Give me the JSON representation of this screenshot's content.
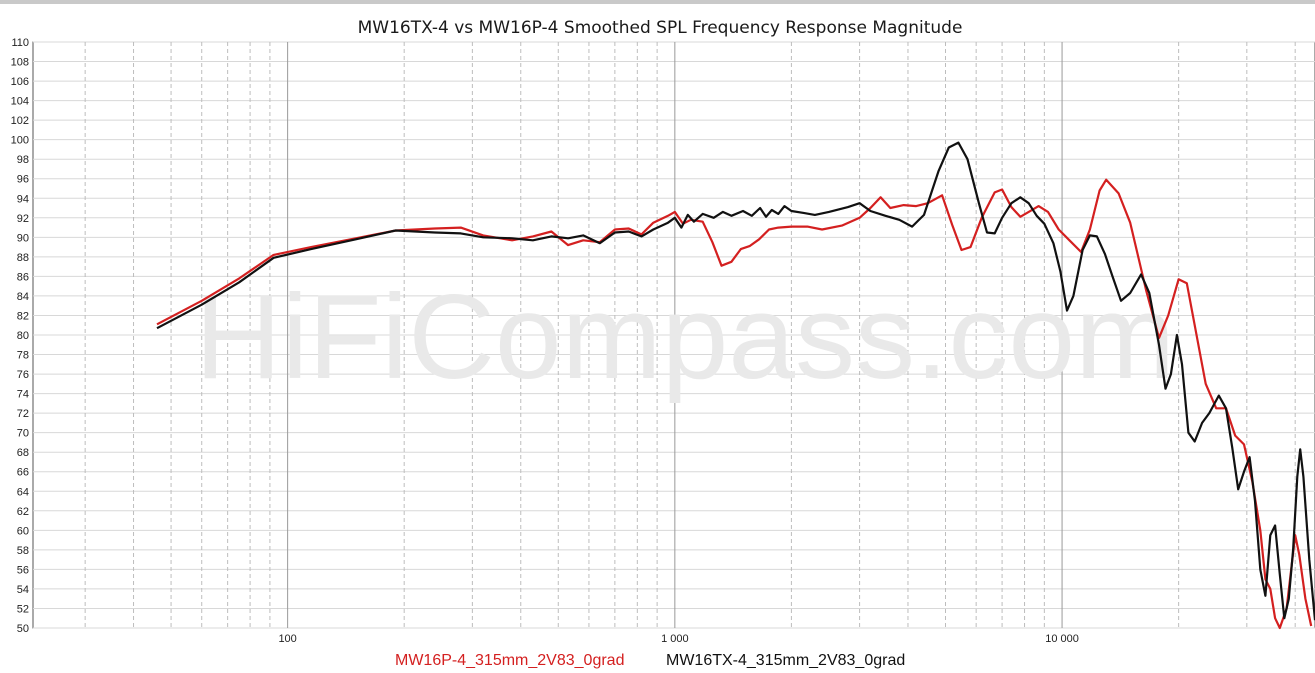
{
  "chart_data": {
    "type": "line",
    "title": "MW16TX-4 vs MW16P-4 Smoothed SPL Frequency Response Magnitude",
    "watermark": "HiFiCompass.com",
    "x_scale": "log",
    "xlim": [
      22,
      45000
    ],
    "ylim": [
      50,
      110
    ],
    "y_ticks": [
      50,
      52,
      54,
      56,
      58,
      60,
      62,
      64,
      66,
      68,
      70,
      72,
      74,
      76,
      78,
      80,
      82,
      84,
      86,
      88,
      90,
      92,
      94,
      96,
      98,
      100,
      102,
      104,
      106,
      108,
      110
    ],
    "x_tick_labels": [
      {
        "value": 100,
        "label": "100"
      },
      {
        "value": 1000,
        "label": "1 000"
      },
      {
        "value": 10000,
        "label": "10 000"
      }
    ],
    "grid": true,
    "legend_position": "bottom-center",
    "series": [
      {
        "name": "MW16P-4_315mm_2V83_0grad",
        "color": "#d42020",
        "points": [
          [
            46,
            81.1
          ],
          [
            60,
            83.5
          ],
          [
            75,
            85.8
          ],
          [
            92,
            88.2
          ],
          [
            115,
            89.0
          ],
          [
            150,
            89.9
          ],
          [
            190,
            90.7
          ],
          [
            240,
            90.9
          ],
          [
            280,
            91.0
          ],
          [
            320,
            90.2
          ],
          [
            380,
            89.7
          ],
          [
            430,
            90.1
          ],
          [
            480,
            90.6
          ],
          [
            530,
            89.2
          ],
          [
            580,
            89.7
          ],
          [
            640,
            89.5
          ],
          [
            700,
            90.8
          ],
          [
            760,
            90.9
          ],
          [
            820,
            90.3
          ],
          [
            880,
            91.5
          ],
          [
            960,
            92.2
          ],
          [
            1000,
            92.6
          ],
          [
            1050,
            91.4
          ],
          [
            1100,
            91.8
          ],
          [
            1180,
            91.6
          ],
          [
            1250,
            89.5
          ],
          [
            1320,
            87.1
          ],
          [
            1400,
            87.5
          ],
          [
            1480,
            88.8
          ],
          [
            1560,
            89.1
          ],
          [
            1650,
            89.8
          ],
          [
            1750,
            90.8
          ],
          [
            1850,
            91.0
          ],
          [
            2000,
            91.1
          ],
          [
            2200,
            91.1
          ],
          [
            2400,
            90.8
          ],
          [
            2700,
            91.2
          ],
          [
            3000,
            92.0
          ],
          [
            3200,
            93.0
          ],
          [
            3400,
            94.1
          ],
          [
            3600,
            93.0
          ],
          [
            3900,
            93.3
          ],
          [
            4200,
            93.2
          ],
          [
            4500,
            93.5
          ],
          [
            4900,
            94.3
          ],
          [
            5200,
            91.3
          ],
          [
            5500,
            88.7
          ],
          [
            5800,
            89.0
          ],
          [
            6200,
            92.0
          ],
          [
            6700,
            94.6
          ],
          [
            7000,
            94.9
          ],
          [
            7400,
            93.1
          ],
          [
            7800,
            92.1
          ],
          [
            8200,
            92.6
          ],
          [
            8700,
            93.2
          ],
          [
            9200,
            92.6
          ],
          [
            9800,
            90.8
          ],
          [
            10500,
            89.6
          ],
          [
            11200,
            88.5
          ],
          [
            11800,
            90.8
          ],
          [
            12500,
            94.8
          ],
          [
            13000,
            95.9
          ],
          [
            14000,
            94.5
          ],
          [
            15000,
            91.5
          ],
          [
            16500,
            84.5
          ],
          [
            17800,
            79.7
          ],
          [
            18800,
            82.0
          ],
          [
            20000,
            85.7
          ],
          [
            21000,
            85.3
          ],
          [
            22000,
            81.0
          ],
          [
            23500,
            75.0
          ],
          [
            25000,
            72.5
          ],
          [
            26500,
            72.5
          ],
          [
            28000,
            69.7
          ],
          [
            29500,
            68.8
          ],
          [
            31000,
            65.0
          ],
          [
            32500,
            60.0
          ],
          [
            33500,
            55.0
          ],
          [
            34500,
            54.0
          ],
          [
            35500,
            51.0
          ],
          [
            36500,
            50.0
          ],
          [
            38000,
            52.0
          ],
          [
            40000,
            59.5
          ],
          [
            41000,
            57.5
          ],
          [
            42500,
            53.0
          ],
          [
            44000,
            50.2
          ]
        ]
      },
      {
        "name": "MW16TX-4_315mm_2V83_0grad",
        "color": "#111111",
        "points": [
          [
            46,
            80.7
          ],
          [
            60,
            83.1
          ],
          [
            75,
            85.4
          ],
          [
            92,
            87.9
          ],
          [
            115,
            88.8
          ],
          [
            150,
            89.8
          ],
          [
            190,
            90.7
          ],
          [
            240,
            90.5
          ],
          [
            280,
            90.4
          ],
          [
            320,
            90.0
          ],
          [
            380,
            89.9
          ],
          [
            430,
            89.7
          ],
          [
            480,
            90.1
          ],
          [
            530,
            89.9
          ],
          [
            580,
            90.2
          ],
          [
            640,
            89.4
          ],
          [
            700,
            90.5
          ],
          [
            760,
            90.6
          ],
          [
            820,
            90.1
          ],
          [
            880,
            90.8
          ],
          [
            960,
            91.5
          ],
          [
            1000,
            92.0
          ],
          [
            1040,
            91.0
          ],
          [
            1080,
            92.3
          ],
          [
            1120,
            91.6
          ],
          [
            1180,
            92.4
          ],
          [
            1260,
            92.0
          ],
          [
            1330,
            92.6
          ],
          [
            1400,
            92.2
          ],
          [
            1500,
            92.7
          ],
          [
            1580,
            92.2
          ],
          [
            1660,
            93.0
          ],
          [
            1720,
            92.1
          ],
          [
            1780,
            92.8
          ],
          [
            1850,
            92.4
          ],
          [
            1920,
            93.2
          ],
          [
            2000,
            92.7
          ],
          [
            2150,
            92.5
          ],
          [
            2300,
            92.3
          ],
          [
            2500,
            92.6
          ],
          [
            2800,
            93.1
          ],
          [
            3000,
            93.5
          ],
          [
            3200,
            92.7
          ],
          [
            3500,
            92.2
          ],
          [
            3800,
            91.8
          ],
          [
            4100,
            91.1
          ],
          [
            4400,
            92.3
          ],
          [
            4800,
            96.8
          ],
          [
            5100,
            99.2
          ],
          [
            5400,
            99.7
          ],
          [
            5700,
            98.0
          ],
          [
            6100,
            93.5
          ],
          [
            6400,
            90.5
          ],
          [
            6700,
            90.4
          ],
          [
            7000,
            92.0
          ],
          [
            7400,
            93.5
          ],
          [
            7800,
            94.1
          ],
          [
            8200,
            93.5
          ],
          [
            8600,
            92.2
          ],
          [
            9000,
            91.4
          ],
          [
            9500,
            89.4
          ],
          [
            9900,
            86.5
          ],
          [
            10300,
            82.5
          ],
          [
            10700,
            84.0
          ],
          [
            11300,
            88.7
          ],
          [
            11800,
            90.2
          ],
          [
            12300,
            90.1
          ],
          [
            12900,
            88.3
          ],
          [
            13500,
            86.0
          ],
          [
            14200,
            83.5
          ],
          [
            15000,
            84.3
          ],
          [
            16000,
            86.2
          ],
          [
            16800,
            84.3
          ],
          [
            17800,
            79.0
          ],
          [
            18500,
            74.5
          ],
          [
            19100,
            76.0
          ],
          [
            19800,
            80.0
          ],
          [
            20400,
            77.0
          ],
          [
            21200,
            70.0
          ],
          [
            22000,
            69.1
          ],
          [
            23000,
            71.0
          ],
          [
            24000,
            72.0
          ],
          [
            25400,
            73.8
          ],
          [
            26500,
            72.5
          ],
          [
            27500,
            68.5
          ],
          [
            28500,
            64.2
          ],
          [
            29500,
            66.0
          ],
          [
            30500,
            67.5
          ],
          [
            31500,
            63.0
          ],
          [
            32500,
            56.0
          ],
          [
            33500,
            53.3
          ],
          [
            34500,
            59.5
          ],
          [
            35500,
            60.5
          ],
          [
            36500,
            55.5
          ],
          [
            37500,
            51.0
          ],
          [
            38500,
            53.0
          ],
          [
            39500,
            58.0
          ],
          [
            40500,
            65.5
          ],
          [
            41200,
            68.3
          ],
          [
            42000,
            65.5
          ],
          [
            43500,
            57.0
          ],
          [
            45000,
            50.8
          ]
        ]
      }
    ]
  }
}
